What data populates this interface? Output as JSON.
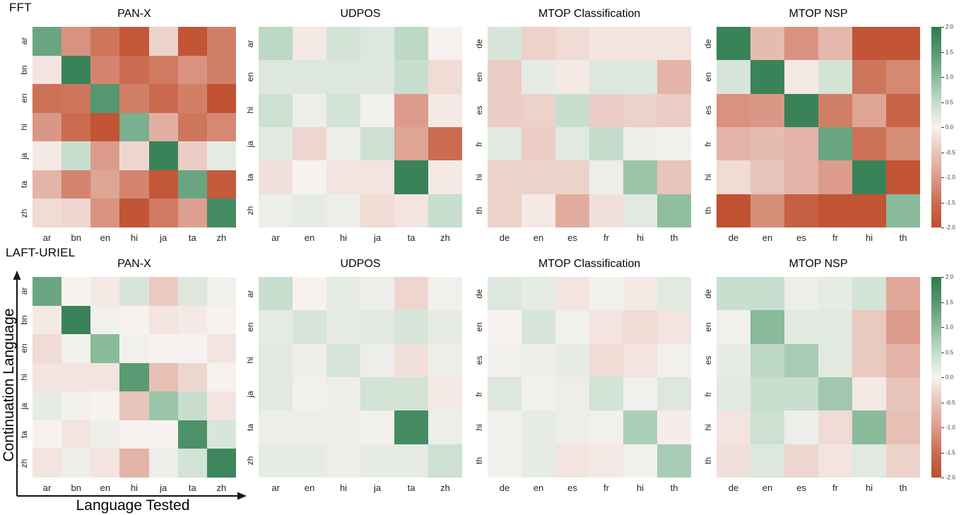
{
  "figure": {
    "row_labels": [
      "FFT",
      "LAFT-URIEL"
    ],
    "x_axis_label": "Language Tested",
    "y_axis_label": "Continuation Language"
  },
  "colorbar": {
    "vmin": -2.0,
    "vmax": 2.0,
    "tick_labels": [
      "2.0",
      "1.5",
      "1.0",
      "0.5",
      "0.0",
      "-0.5",
      "-1.0",
      "-1.5",
      "-2.0"
    ]
  },
  "colormap": {
    "name": "red-white-green-diverging",
    "anchors": [
      {
        "value": -2.0,
        "color": "#bf4f2e"
      },
      {
        "value": -1.5,
        "color": "#cb6c50"
      },
      {
        "value": -1.0,
        "color": "#dc9c8b"
      },
      {
        "value": -0.5,
        "color": "#e8c4ba"
      },
      {
        "value": 0.0,
        "color": "#f7f2f0"
      },
      {
        "value": 0.5,
        "color": "#c3dccb"
      },
      {
        "value": 1.0,
        "color": "#8abb9b"
      },
      {
        "value": 1.5,
        "color": "#55976f"
      },
      {
        "value": 2.0,
        "color": "#2e7b4f"
      }
    ]
  },
  "chart_data": [
    {
      "type": "heatmap",
      "group": "FFT",
      "title": "PAN-X",
      "x": [
        "ar",
        "bn",
        "en",
        "hi",
        "ja",
        "ta",
        "zh"
      ],
      "y": [
        "ar",
        "bn",
        "en",
        "hi",
        "ja",
        "ta",
        "zh"
      ],
      "vmin": -2.0,
      "vmax": 2.0,
      "values": [
        [
          1.3,
          -1.1,
          -1.4,
          -1.85,
          -0.35,
          -1.9,
          -1.3
        ],
        [
          -0.15,
          1.85,
          -1.25,
          -1.5,
          -1.35,
          -1.1,
          -1.3
        ],
        [
          -1.45,
          -1.4,
          1.5,
          -1.3,
          -1.55,
          -1.3,
          -1.95
        ],
        [
          -1.05,
          -1.5,
          -1.9,
          1.15,
          -0.75,
          -1.4,
          -1.2
        ],
        [
          -0.1,
          0.45,
          -1.0,
          -0.3,
          1.85,
          -0.4,
          0.15
        ],
        [
          -0.7,
          -1.25,
          -0.9,
          -1.25,
          -1.85,
          1.3,
          -1.8
        ],
        [
          -0.25,
          -0.3,
          -1.1,
          -1.9,
          -1.35,
          -0.95,
          1.7
        ]
      ]
    },
    {
      "type": "heatmap",
      "group": "FFT",
      "title": "UDPOS",
      "x": [
        "ar",
        "en",
        "hi",
        "ja",
        "ta",
        "zh"
      ],
      "y": [
        "ar",
        "en",
        "hi",
        "ja",
        "ta",
        "zh"
      ],
      "vmin": -2.0,
      "vmax": 2.0,
      "values": [
        [
          0.55,
          -0.1,
          0.35,
          0.25,
          0.55,
          0.0
        ],
        [
          0.25,
          0.25,
          0.25,
          0.25,
          0.45,
          -0.25
        ],
        [
          0.4,
          0.1,
          0.35,
          0.05,
          -1.0,
          -0.1
        ],
        [
          0.2,
          -0.3,
          0.1,
          0.4,
          -0.9,
          -1.5
        ],
        [
          -0.2,
          0.0,
          -0.15,
          -0.15,
          1.85,
          -0.1
        ],
        [
          0.1,
          0.15,
          0.1,
          -0.25,
          -0.15,
          0.45
        ]
      ]
    },
    {
      "type": "heatmap",
      "group": "FFT",
      "title": "MTOP Classification",
      "x": [
        "de",
        "en",
        "es",
        "fr",
        "hi",
        "th"
      ],
      "y": [
        "de",
        "en",
        "es",
        "fr",
        "hi",
        "th"
      ],
      "vmin": -2.0,
      "vmax": 2.0,
      "values": [
        [
          0.3,
          -0.35,
          -0.25,
          -0.15,
          -0.15,
          -0.15
        ],
        [
          -0.4,
          0.15,
          -0.1,
          0.25,
          0.25,
          -0.7
        ],
        [
          -0.4,
          -0.35,
          0.45,
          -0.4,
          -0.35,
          -0.4
        ],
        [
          0.2,
          -0.4,
          0.2,
          0.5,
          0.1,
          0.05
        ],
        [
          -0.35,
          -0.35,
          -0.35,
          0.1,
          0.85,
          -0.5
        ],
        [
          -0.35,
          -0.1,
          -0.8,
          -0.2,
          0.2,
          0.95
        ]
      ]
    },
    {
      "type": "heatmap",
      "group": "FFT",
      "title": "MTOP NSP",
      "x": [
        "de",
        "en",
        "es",
        "fr",
        "hi",
        "th"
      ],
      "y": [
        "de",
        "en",
        "es",
        "fr",
        "hi",
        "th"
      ],
      "vmin": -2.0,
      "vmax": 2.0,
      "values": [
        [
          1.85,
          -0.6,
          -1.1,
          -0.65,
          -1.9,
          -1.9
        ],
        [
          0.3,
          1.85,
          -0.1,
          0.35,
          -1.4,
          -1.2
        ],
        [
          -1.1,
          -1.05,
          1.85,
          -1.3,
          -0.9,
          -1.65
        ],
        [
          -0.7,
          -0.6,
          -0.7,
          1.3,
          -1.45,
          -1.15
        ],
        [
          -0.25,
          -0.5,
          -0.7,
          -1.0,
          1.85,
          -1.9
        ],
        [
          -1.95,
          -1.15,
          -1.7,
          -1.9,
          -1.9,
          1.0
        ]
      ]
    },
    {
      "type": "heatmap",
      "group": "LAFT-URIEL",
      "title": "PAN-X",
      "x": [
        "ar",
        "bn",
        "en",
        "hi",
        "ja",
        "ta",
        "zh"
      ],
      "y": [
        "ar",
        "bn",
        "en",
        "hi",
        "ja",
        "ta",
        "zh"
      ],
      "vmin": -2.0,
      "vmax": 2.0,
      "values": [
        [
          1.3,
          0.0,
          -0.1,
          0.3,
          -0.45,
          0.25,
          0.05
        ],
        [
          -0.1,
          1.85,
          0.05,
          0.0,
          -0.15,
          -0.1,
          0.0
        ],
        [
          -0.25,
          0.05,
          1.0,
          0.05,
          0.0,
          0.0,
          -0.15
        ],
        [
          -0.15,
          -0.15,
          -0.15,
          1.45,
          -0.55,
          -0.3,
          0.0
        ],
        [
          0.15,
          0.05,
          0.0,
          -0.5,
          0.85,
          0.45,
          -0.15
        ],
        [
          0.0,
          -0.15,
          0.1,
          0.0,
          0.0,
          1.6,
          0.3
        ],
        [
          -0.15,
          0.1,
          -0.15,
          -0.7,
          0.1,
          0.35,
          1.8
        ]
      ]
    },
    {
      "type": "heatmap",
      "group": "LAFT-URIEL",
      "title": "UDPOS",
      "x": [
        "ar",
        "en",
        "hi",
        "ja",
        "ta",
        "zh"
      ],
      "y": [
        "ar",
        "en",
        "hi",
        "ja",
        "ta",
        "zh"
      ],
      "vmin": -2.0,
      "vmax": 2.0,
      "values": [
        [
          0.45,
          0.0,
          0.15,
          0.1,
          -0.3,
          0.05
        ],
        [
          0.15,
          0.3,
          0.15,
          0.2,
          0.3,
          0.15
        ],
        [
          0.2,
          0.1,
          0.3,
          0.1,
          -0.2,
          0.1
        ],
        [
          0.2,
          0.05,
          0.1,
          0.35,
          0.35,
          -0.1
        ],
        [
          0.1,
          0.1,
          0.1,
          0.05,
          1.7,
          0.1
        ],
        [
          0.15,
          0.15,
          0.1,
          0.15,
          0.15,
          0.4
        ]
      ]
    },
    {
      "type": "heatmap",
      "group": "LAFT-URIEL",
      "title": "MTOP Classification",
      "x": [
        "de",
        "en",
        "es",
        "fr",
        "hi",
        "th"
      ],
      "y": [
        "de",
        "en",
        "es",
        "fr",
        "hi",
        "th"
      ],
      "vmin": -2.0,
      "vmax": 2.0,
      "values": [
        [
          0.25,
          0.15,
          -0.15,
          0.05,
          -0.1,
          0.2
        ],
        [
          0.0,
          0.3,
          0.05,
          -0.15,
          -0.25,
          -0.15
        ],
        [
          0.05,
          0.1,
          0.15,
          -0.25,
          -0.15,
          0.05
        ],
        [
          0.25,
          0.05,
          0.1,
          0.35,
          0.05,
          0.25
        ],
        [
          0.05,
          0.15,
          0.1,
          0.05,
          0.7,
          -0.05
        ],
        [
          0.05,
          0.15,
          -0.15,
          -0.1,
          0.05,
          0.75
        ]
      ]
    },
    {
      "type": "heatmap",
      "group": "LAFT-URIEL",
      "title": "MTOP NSP",
      "x": [
        "de",
        "en",
        "es",
        "fr",
        "hi",
        "th"
      ],
      "y": [
        "de",
        "en",
        "es",
        "fr",
        "hi",
        "th"
      ],
      "vmin": -2.0,
      "vmax": 2.0,
      "values": [
        [
          0.45,
          0.45,
          0.1,
          0.15,
          0.35,
          -0.85
        ],
        [
          0.05,
          1.0,
          0.2,
          0.2,
          -0.45,
          -1.0
        ],
        [
          0.15,
          0.55,
          0.75,
          0.2,
          -0.45,
          -0.7
        ],
        [
          0.2,
          0.45,
          0.45,
          0.8,
          -0.1,
          -0.5
        ],
        [
          -0.15,
          0.4,
          0.1,
          -0.25,
          1.0,
          -0.55
        ],
        [
          -0.2,
          0.25,
          -0.3,
          -0.15,
          0.2,
          -0.35
        ]
      ]
    }
  ]
}
